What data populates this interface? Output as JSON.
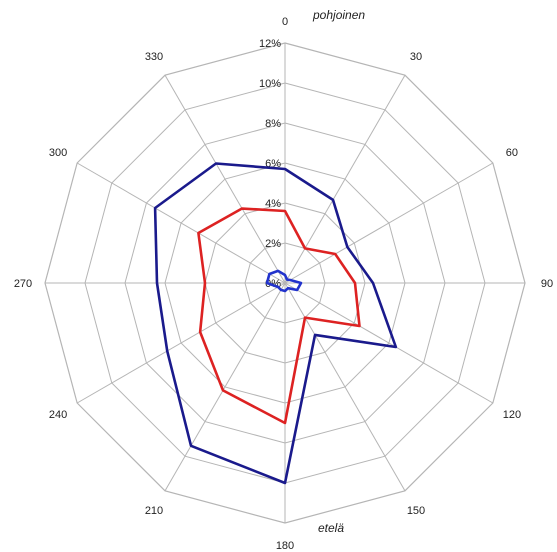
{
  "captions": {
    "north": "pohjoinen",
    "south": "etelä"
  },
  "chart_data": {
    "type": "radar",
    "angles": [
      0,
      30,
      60,
      90,
      120,
      150,
      180,
      210,
      240,
      270,
      300,
      330
    ],
    "angle_labels": [
      "0",
      "30",
      "60",
      "90",
      "120",
      "150",
      "180",
      "210",
      "240",
      "270",
      "300",
      "330"
    ],
    "r_ticks": [
      0,
      2,
      4,
      6,
      8,
      10,
      12
    ],
    "r_tick_labels": [
      "0%",
      "2%",
      "4%",
      "6%",
      "8%",
      "10%",
      "12%"
    ],
    "rlim": [
      0,
      12
    ],
    "grid": true,
    "series": [
      {
        "color": "#1a1a8c",
        "values": [
          5.7,
          4.8,
          3.6,
          4.4,
          6.4,
          3.0,
          10.0,
          9.4,
          6.8,
          6.4,
          7.5,
          6.9
        ]
      },
      {
        "color": "#dd2222",
        "values": [
          3.6,
          2.0,
          2.9,
          3.5,
          4.3,
          2.0,
          7.0,
          6.2,
          4.9,
          4.0,
          5.0,
          4.3
        ]
      },
      {
        "color": "#2233cc",
        "values": [
          0.4,
          0.2,
          0.3,
          0.8,
          0.7,
          0.3,
          0.4,
          0.4,
          0.4,
          0.9,
          0.9,
          0.7
        ]
      }
    ]
  }
}
